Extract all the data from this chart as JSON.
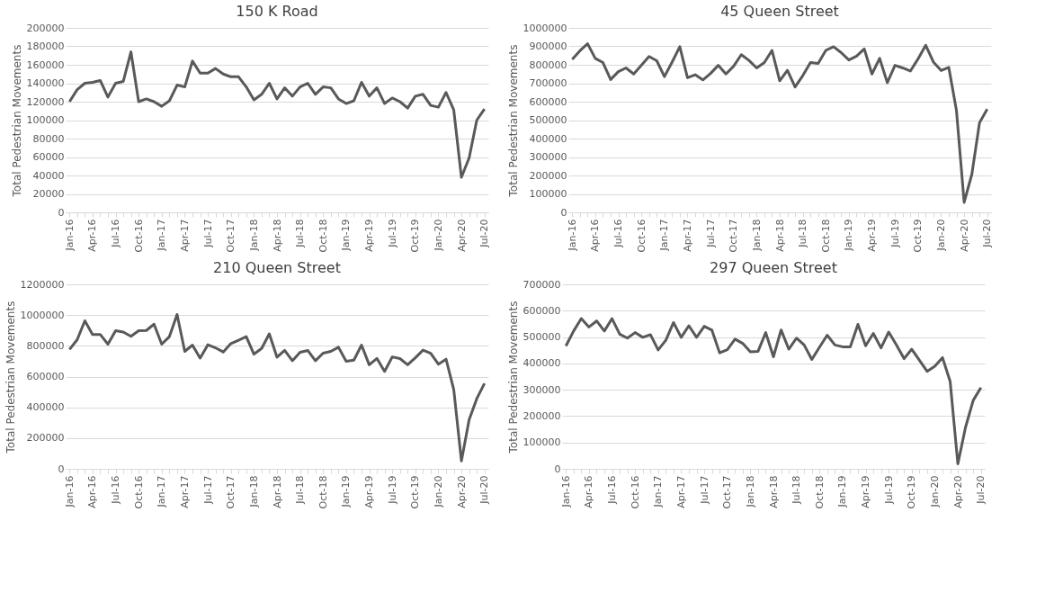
{
  "chart_data": [
    {
      "type": "line",
      "title": "150 K Road",
      "ylabel": "Total Pedestrian Movements",
      "grid": "y",
      "marker": "none",
      "line_style": "solid",
      "categories": [
        "Jan-16",
        null,
        null,
        "Apr-16",
        null,
        null,
        "Jul-16",
        null,
        null,
        "Oct-16",
        null,
        null,
        "Jan-17",
        null,
        null,
        "Apr-17",
        null,
        null,
        "Jul-17",
        null,
        null,
        "Oct-17",
        null,
        null,
        "Jan-18",
        null,
        null,
        "Apr-18",
        null,
        null,
        "Jul-18",
        null,
        null,
        "Oct-18",
        null,
        null,
        "Jan-19",
        null,
        null,
        "Apr-19",
        null,
        null,
        "Jul-19",
        null,
        null,
        "Oct-19",
        null,
        null,
        "Jan-20",
        null,
        null,
        "Apr-20",
        null,
        null,
        "Jul-20"
      ],
      "ylim": [
        0,
        200000
      ],
      "yticks": [
        0,
        20000,
        40000,
        60000,
        80000,
        100000,
        120000,
        140000,
        160000,
        180000,
        200000
      ],
      "series": [
        {
          "color": "#595959",
          "values": [
            120000,
            133000,
            140000,
            141000,
            143000,
            125000,
            140000,
            142000,
            174000,
            120000,
            123000,
            120000,
            115000,
            121000,
            138000,
            136000,
            164000,
            151000,
            151000,
            156000,
            150000,
            147000,
            147000,
            136000,
            122000,
            128000,
            140000,
            123000,
            135000,
            126000,
            136000,
            140000,
            128000,
            136000,
            135000,
            123000,
            118000,
            121000,
            141000,
            126000,
            135000,
            118000,
            124000,
            120000,
            113000,
            126000,
            128000,
            116000,
            114000,
            130000,
            111000,
            38000,
            59000,
            100000,
            112000
          ]
        }
      ]
    },
    {
      "type": "line",
      "title": "45 Queen Street",
      "ylabel": "Total Pedestrian Movements",
      "grid": "y",
      "marker": "none",
      "line_style": "solid",
      "categories": [
        "Jan-16",
        null,
        null,
        "Apr-16",
        null,
        null,
        "Jul-16",
        null,
        null,
        "Oct-16",
        null,
        null,
        "Jan-17",
        null,
        null,
        "Apr-17",
        null,
        null,
        "Jul-17",
        null,
        null,
        "Oct-17",
        null,
        null,
        "Jan-18",
        null,
        null,
        "Apr-18",
        null,
        null,
        "Jul-18",
        null,
        null,
        "Oct-18",
        null,
        null,
        "Jan-19",
        null,
        null,
        "Apr-19",
        null,
        null,
        "Jul-19",
        null,
        null,
        "Oct-19",
        null,
        null,
        "Jan-20",
        null,
        null,
        "Apr-20",
        null,
        null,
        "Jul-20"
      ],
      "ylim": [
        0,
        1000000
      ],
      "yticks": [
        0,
        100000,
        200000,
        300000,
        400000,
        500000,
        600000,
        700000,
        800000,
        900000,
        1000000
      ],
      "series": [
        {
          "color": "#595959",
          "values": [
            829000,
            876000,
            914000,
            835000,
            812000,
            720000,
            763000,
            783000,
            750000,
            797000,
            845000,
            822000,
            736000,
            815000,
            898000,
            730000,
            746000,
            718000,
            753000,
            797000,
            750000,
            792000,
            855000,
            824000,
            783000,
            812000,
            878000,
            713000,
            770000,
            680000,
            741000,
            812000,
            807000,
            878000,
            898000,
            866000,
            826000,
            847000,
            886000,
            750000,
            835000,
            703000,
            797000,
            783000,
            766000,
            832000,
            906000,
            815000,
            769000,
            786000,
            552000,
            54000,
            206000,
            486000,
            560000
          ]
        }
      ]
    },
    {
      "type": "line",
      "title": "210 Queen Street",
      "ylabel": "Total Pedestrian Movements",
      "grid": "y",
      "marker": "none",
      "line_style": "solid",
      "categories": [
        "Jan-16",
        null,
        null,
        "Apr-16",
        null,
        null,
        "Jul-16",
        null,
        null,
        "Oct-16",
        null,
        null,
        "Jan-17",
        null,
        null,
        "Apr-17",
        null,
        null,
        "Jul-17",
        null,
        null,
        "Oct-17",
        null,
        null,
        "Jan-18",
        null,
        null,
        "Apr-18",
        null,
        null,
        "Jul-18",
        null,
        null,
        "Oct-18",
        null,
        null,
        "Jan-19",
        null,
        null,
        "Apr-19",
        null,
        null,
        "Jul-19",
        null,
        null,
        "Oct-19",
        null,
        null,
        "Jan-20",
        null,
        null,
        "Apr-20",
        null,
        null,
        "Jul-20"
      ],
      "ylim": [
        0,
        1200000
      ],
      "yticks": [
        0,
        200000,
        400000,
        600000,
        800000,
        1000000,
        1200000
      ],
      "series": [
        {
          "color": "#595959",
          "values": [
            776000,
            840000,
            963000,
            874000,
            874000,
            811000,
            898000,
            890000,
            862000,
            898000,
            900000,
            941000,
            811000,
            860000,
            1004000,
            764000,
            805000,
            720000,
            807000,
            787000,
            760000,
            815000,
            837000,
            860000,
            746000,
            783000,
            878000,
            726000,
            770000,
            703000,
            758000,
            770000,
            703000,
            752000,
            764000,
            791000,
            699000,
            707000,
            805000,
            677000,
            718000,
            634000,
            728000,
            717000,
            677000,
            722000,
            772000,
            752000,
            681000,
            713000,
            516000,
            51000,
            319000,
            457000,
            555000
          ]
        }
      ]
    },
    {
      "type": "line",
      "title": "297 Queen Street",
      "ylabel": "Total Pedestrian Movements",
      "grid": "y",
      "marker": "none",
      "line_style": "solid",
      "categories": [
        "Jan-16",
        null,
        null,
        "Apr-16",
        null,
        null,
        "Jul-16",
        null,
        null,
        "Oct-16",
        null,
        null,
        "Jan-17",
        null,
        null,
        "Apr-17",
        null,
        null,
        "Jul-17",
        null,
        null,
        "Oct-17",
        null,
        null,
        "Jan-18",
        null,
        null,
        "Apr-18",
        null,
        null,
        "Jul-18",
        null,
        null,
        "Oct-18",
        null,
        null,
        "Jan-19",
        null,
        null,
        "Apr-19",
        null,
        null,
        "Jul-19",
        null,
        null,
        "Oct-19",
        null,
        null,
        "Jan-20",
        null,
        null,
        "Apr-20",
        null,
        null,
        "Jul-20"
      ],
      "ylim": [
        0,
        700000
      ],
      "yticks": [
        0,
        100000,
        200000,
        300000,
        400000,
        500000,
        600000,
        700000
      ],
      "series": [
        {
          "color": "#595959",
          "values": [
            466000,
            523000,
            570000,
            538000,
            561000,
            523000,
            570000,
            511000,
            496000,
            517000,
            499000,
            509000,
            451000,
            488000,
            555000,
            499000,
            543000,
            499000,
            541000,
            526000,
            440000,
            452000,
            492000,
            476000,
            444000,
            446000,
            517000,
            425000,
            527000,
            454000,
            496000,
            470000,
            415000,
            462000,
            507000,
            470000,
            463000,
            463000,
            548000,
            467000,
            514000,
            459000,
            519000,
            470000,
            418000,
            454000,
            412000,
            370000,
            389000,
            422000,
            331000,
            19000,
            158000,
            260000,
            308000
          ]
        }
      ]
    }
  ]
}
